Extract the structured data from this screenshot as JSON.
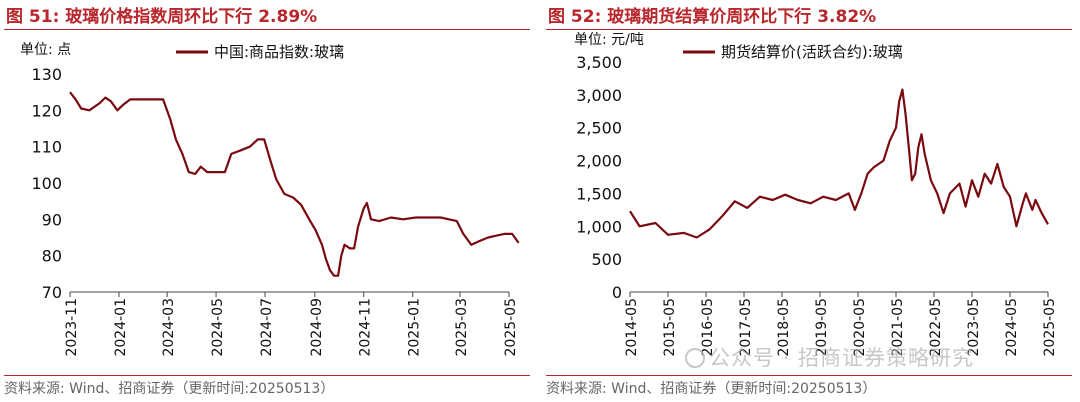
{
  "charts": {
    "left": {
      "title": "图 51:  玻璃价格指数周环比下行 2.89%",
      "source": "资料来源: Wind、招商证券（更新时间:20250513）",
      "unit": "单位: 点",
      "color": "#7b0a10"
    },
    "right": {
      "title": "图 52:  玻璃期货结算价周环比下行 3.82%",
      "source": "资料来源: Wind、招商证券（更新时间:20250513）",
      "unit": "单位: 元/吨",
      "color": "#7b0a10"
    }
  },
  "watermark": "公众号 · 招商证券策略研究",
  "chart_data": [
    {
      "type": "line",
      "title": "图 51:  玻璃价格指数周环比下行 2.89%",
      "ylabel": "单位: 点",
      "ylim": [
        70,
        130
      ],
      "yticks": [
        70,
        80,
        90,
        100,
        110,
        120,
        130
      ],
      "xlim": [
        "2023-11",
        "2025-05"
      ],
      "xticks": [
        "2023-11",
        "2024-01",
        "2024-03",
        "2024-05",
        "2024-07",
        "2024-09",
        "2024-11",
        "2025-01",
        "2025-03",
        "2025-05"
      ],
      "legend": "top-center",
      "series": [
        {
          "name": "中国:商品指数:玻璃",
          "x": [
            "2023-11-01",
            "2023-11-08",
            "2023-11-15",
            "2023-11-25",
            "2023-12-08",
            "2023-12-15",
            "2023-12-22",
            "2023-12-30",
            "2024-01-06",
            "2024-01-15",
            "2024-01-25",
            "2024-02-05",
            "2024-02-25",
            "2024-03-05",
            "2024-03-12",
            "2024-03-20",
            "2024-03-28",
            "2024-04-05",
            "2024-04-12",
            "2024-04-20",
            "2024-05-05",
            "2024-05-12",
            "2024-05-20",
            "2024-06-01",
            "2024-06-12",
            "2024-06-22",
            "2024-06-30",
            "2024-07-08",
            "2024-07-15",
            "2024-07-25",
            "2024-08-05",
            "2024-08-15",
            "2024-08-25",
            "2024-09-02",
            "2024-09-10",
            "2024-09-15",
            "2024-09-20",
            "2024-09-25",
            "2024-09-30",
            "2024-10-04",
            "2024-10-08",
            "2024-10-15",
            "2024-10-20",
            "2024-10-25",
            "2024-11-01",
            "2024-11-05",
            "2024-11-10",
            "2024-11-20",
            "2024-12-05",
            "2024-12-20",
            "2025-01-05",
            "2025-01-20",
            "2025-02-05",
            "2025-02-15",
            "2025-02-25",
            "2025-03-05",
            "2025-03-15",
            "2025-03-25",
            "2025-04-05",
            "2025-04-15",
            "2025-04-25",
            "2025-05-05",
            "2025-05-13"
          ],
          "values": [
            125,
            123,
            120.5,
            120,
            122,
            123.5,
            122.5,
            120,
            121.5,
            123,
            123,
            123,
            123,
            117.5,
            112,
            108,
            103,
            102.5,
            104.5,
            103,
            103,
            103,
            108,
            109,
            110,
            112,
            112,
            106,
            101,
            97,
            96,
            94,
            90,
            87,
            83,
            79,
            76,
            74.5,
            74.5,
            80,
            83,
            82,
            82,
            88,
            93,
            94.5,
            90,
            89.5,
            90.5,
            90,
            90.5,
            90.5,
            90.5,
            90,
            89.5,
            86,
            83,
            84,
            85,
            85.5,
            86,
            86,
            83.5
          ]
        }
      ]
    },
    {
      "type": "line",
      "title": "图 52:  玻璃期货结算价周环比下行 3.82%",
      "ylabel": "单位: 元/吨",
      "ylim": [
        0,
        3500
      ],
      "yticks": [
        0,
        500,
        1000,
        1500,
        2000,
        2500,
        3000,
        3500
      ],
      "xlim": [
        "2014-05",
        "2025-05"
      ],
      "xticks": [
        "2014-05",
        "2015-05",
        "2016-05",
        "2017-05",
        "2018-05",
        "2019-05",
        "2020-05",
        "2021-05",
        "2022-05",
        "2023-05",
        "2024-05",
        "2025-05"
      ],
      "legend": "top-center",
      "series": [
        {
          "name": "期货结算价(活跃合约):玻璃",
          "x": [
            "2014-05",
            "2014-08",
            "2015-01",
            "2015-05",
            "2015-10",
            "2016-02",
            "2016-06",
            "2016-10",
            "2017-02",
            "2017-06",
            "2017-10",
            "2018-02",
            "2018-06",
            "2018-10",
            "2019-02",
            "2019-06",
            "2019-10",
            "2020-02",
            "2020-04",
            "2020-06",
            "2020-08",
            "2020-10",
            "2021-01",
            "2021-03",
            "2021-05",
            "2021-06",
            "2021-07",
            "2021-08",
            "2021-09",
            "2021-10",
            "2021-11",
            "2021-12",
            "2022-01",
            "2022-02",
            "2022-04",
            "2022-06",
            "2022-08",
            "2022-10",
            "2023-01",
            "2023-03",
            "2023-05",
            "2023-07",
            "2023-09",
            "2023-11",
            "2024-01",
            "2024-03",
            "2024-05",
            "2024-07",
            "2024-09",
            "2024-10",
            "2024-12",
            "2025-01",
            "2025-03",
            "2025-05"
          ],
          "values": [
            1230,
            1000,
            1050,
            870,
            900,
            830,
            950,
            1150,
            1380,
            1280,
            1450,
            1400,
            1480,
            1400,
            1350,
            1450,
            1400,
            1500,
            1250,
            1500,
            1800,
            1900,
            2000,
            2300,
            2500,
            2900,
            3080,
            2700,
            2200,
            1700,
            1800,
            2200,
            2400,
            2100,
            1700,
            1500,
            1200,
            1500,
            1650,
            1300,
            1700,
            1450,
            1800,
            1650,
            1950,
            1600,
            1450,
            1000,
            1350,
            1500,
            1250,
            1400,
            1200,
            1030
          ]
        }
      ]
    }
  ]
}
